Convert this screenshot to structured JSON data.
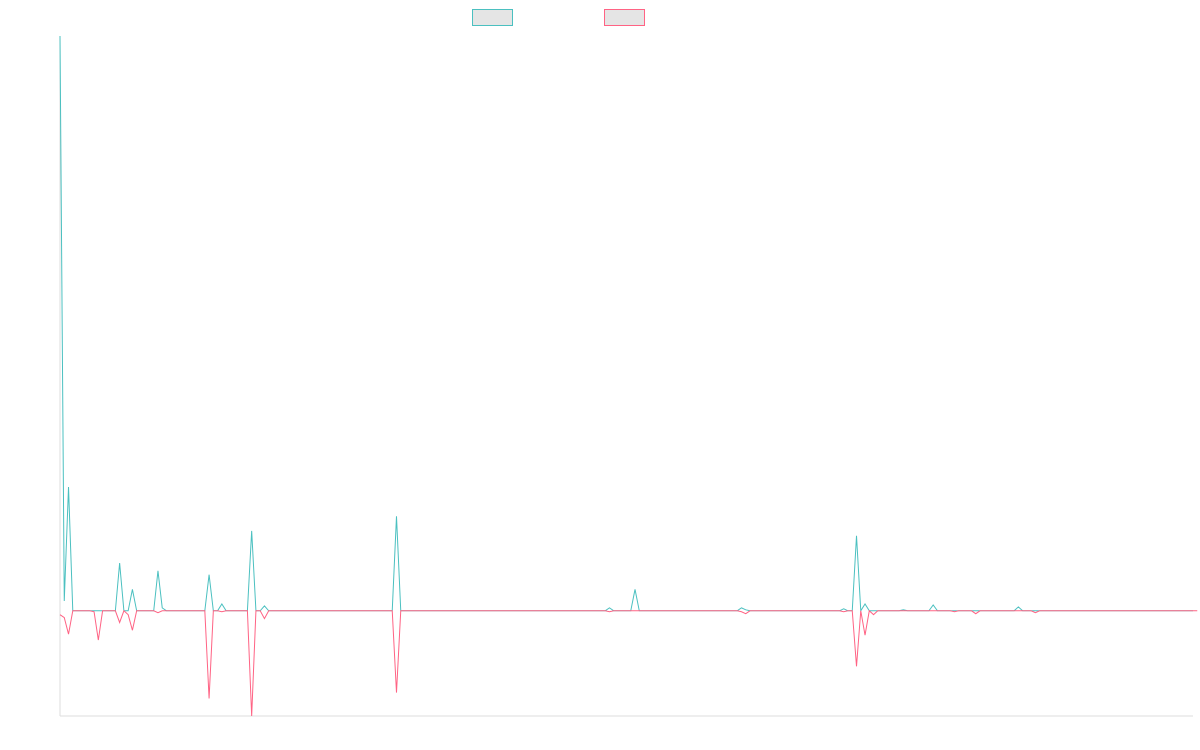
{
  "chart_data": {
    "type": "line",
    "title": "",
    "xlabel": "",
    "ylabel": "",
    "ylim": [
      -108,
      590
    ],
    "grid": false,
    "legend_position": "top-center",
    "series": [
      {
        "name": "",
        "color": "#4bc0c0",
        "values": [
          590,
          10,
          127,
          0,
          0,
          0,
          0,
          0,
          0,
          0,
          0,
          0,
          0,
          0,
          49,
          0,
          0,
          22,
          0,
          0,
          0,
          0,
          0,
          41,
          3,
          0,
          0,
          0,
          0,
          0,
          0,
          0,
          0,
          0,
          0,
          37,
          0,
          0,
          7,
          0,
          0,
          0,
          0,
          0,
          0,
          82,
          0,
          0,
          5,
          0,
          0,
          0,
          0,
          0,
          0,
          0,
          0,
          0,
          0,
          0,
          0,
          0,
          0,
          0,
          0,
          0,
          0,
          0,
          0,
          0,
          0,
          0,
          0,
          0,
          0,
          0,
          0,
          0,
          0,
          97,
          0,
          0,
          0,
          0,
          0,
          0,
          0,
          0,
          0,
          0,
          0,
          0,
          0,
          0,
          0,
          0,
          0,
          0,
          0,
          0,
          0,
          0,
          0,
          0,
          0,
          0,
          0,
          0,
          0,
          0,
          0,
          0,
          0,
          0,
          0,
          0,
          0,
          0,
          0,
          0,
          0,
          0,
          0,
          0,
          0,
          0,
          0,
          0,
          0,
          3,
          0,
          0,
          0,
          0,
          0,
          22,
          0,
          0,
          0,
          0,
          0,
          0,
          0,
          0,
          0,
          0,
          0,
          0,
          0,
          0,
          0,
          0,
          0,
          0,
          0,
          0,
          0,
          0,
          0,
          0,
          3,
          1,
          0,
          0,
          0,
          0,
          0,
          0,
          0,
          0,
          0,
          0,
          0,
          0,
          0,
          0,
          0,
          0,
          0,
          0,
          0,
          0,
          0,
          0,
          2,
          0,
          0,
          77,
          0,
          7,
          0,
          0,
          0,
          0,
          0,
          0,
          0,
          0,
          1,
          0,
          0,
          0,
          0,
          0,
          0,
          6,
          0,
          0,
          0,
          0,
          0,
          0,
          0,
          0,
          0,
          0,
          0,
          0,
          0,
          0,
          0,
          0,
          0,
          0,
          0,
          4,
          0,
          0,
          0,
          0,
          0,
          0,
          0,
          0,
          0,
          0,
          0,
          0,
          0,
          0,
          0,
          0,
          0,
          0,
          0,
          0,
          0,
          0,
          0,
          0,
          0,
          0,
          0,
          0,
          0,
          0,
          0,
          0,
          0,
          0,
          0,
          0,
          0,
          0,
          0,
          0,
          0
        ]
      },
      {
        "name": "",
        "color": "#ff6384",
        "values": [
          -4,
          -7,
          -24,
          0,
          0,
          0,
          0,
          0,
          -1,
          -30,
          0,
          0,
          0,
          0,
          -12,
          0,
          -4,
          -20,
          0,
          0,
          0,
          0,
          0,
          -2,
          0,
          0,
          0,
          0,
          0,
          0,
          0,
          0,
          0,
          0,
          0,
          -90,
          0,
          0,
          -1,
          0,
          0,
          0,
          0,
          0,
          0,
          -108,
          0,
          0,
          -8,
          0,
          0,
          0,
          0,
          0,
          0,
          0,
          0,
          0,
          0,
          0,
          0,
          0,
          0,
          0,
          0,
          0,
          0,
          0,
          0,
          0,
          0,
          0,
          0,
          0,
          0,
          0,
          0,
          0,
          0,
          -84,
          0,
          0,
          0,
          0,
          0,
          0,
          0,
          0,
          0,
          0,
          0,
          0,
          0,
          0,
          0,
          0,
          0,
          0,
          0,
          0,
          0,
          0,
          0,
          0,
          0,
          0,
          0,
          0,
          0,
          0,
          0,
          0,
          0,
          0,
          0,
          0,
          0,
          0,
          0,
          0,
          0,
          0,
          0,
          0,
          0,
          0,
          0,
          0,
          0,
          -1,
          0,
          0,
          0,
          0,
          0,
          0,
          0,
          0,
          0,
          0,
          0,
          0,
          0,
          0,
          0,
          0,
          0,
          0,
          0,
          0,
          0,
          0,
          0,
          0,
          0,
          0,
          0,
          0,
          0,
          0,
          -1,
          -3,
          0,
          0,
          0,
          0,
          0,
          0,
          0,
          0,
          0,
          0,
          0,
          0,
          0,
          0,
          0,
          0,
          0,
          0,
          0,
          0,
          0,
          0,
          -1,
          0,
          0,
          -57,
          0,
          -25,
          0,
          -4,
          0,
          0,
          0,
          0,
          0,
          0,
          0,
          0,
          0,
          0,
          0,
          0,
          0,
          0,
          0,
          0,
          0,
          0,
          -1,
          0,
          0,
          0,
          0,
          -3,
          0,
          0,
          0,
          0,
          0,
          0,
          0,
          0,
          0,
          0,
          0,
          0,
          0,
          -2,
          0,
          0,
          0,
          0,
          0,
          0,
          0,
          0,
          0,
          0,
          0,
          0,
          0,
          0,
          0,
          0,
          0,
          0,
          0,
          0,
          0,
          0,
          0,
          0,
          0,
          0,
          0,
          0,
          0,
          0,
          0,
          0,
          0,
          0,
          0,
          0,
          0,
          0
        ]
      }
    ]
  }
}
